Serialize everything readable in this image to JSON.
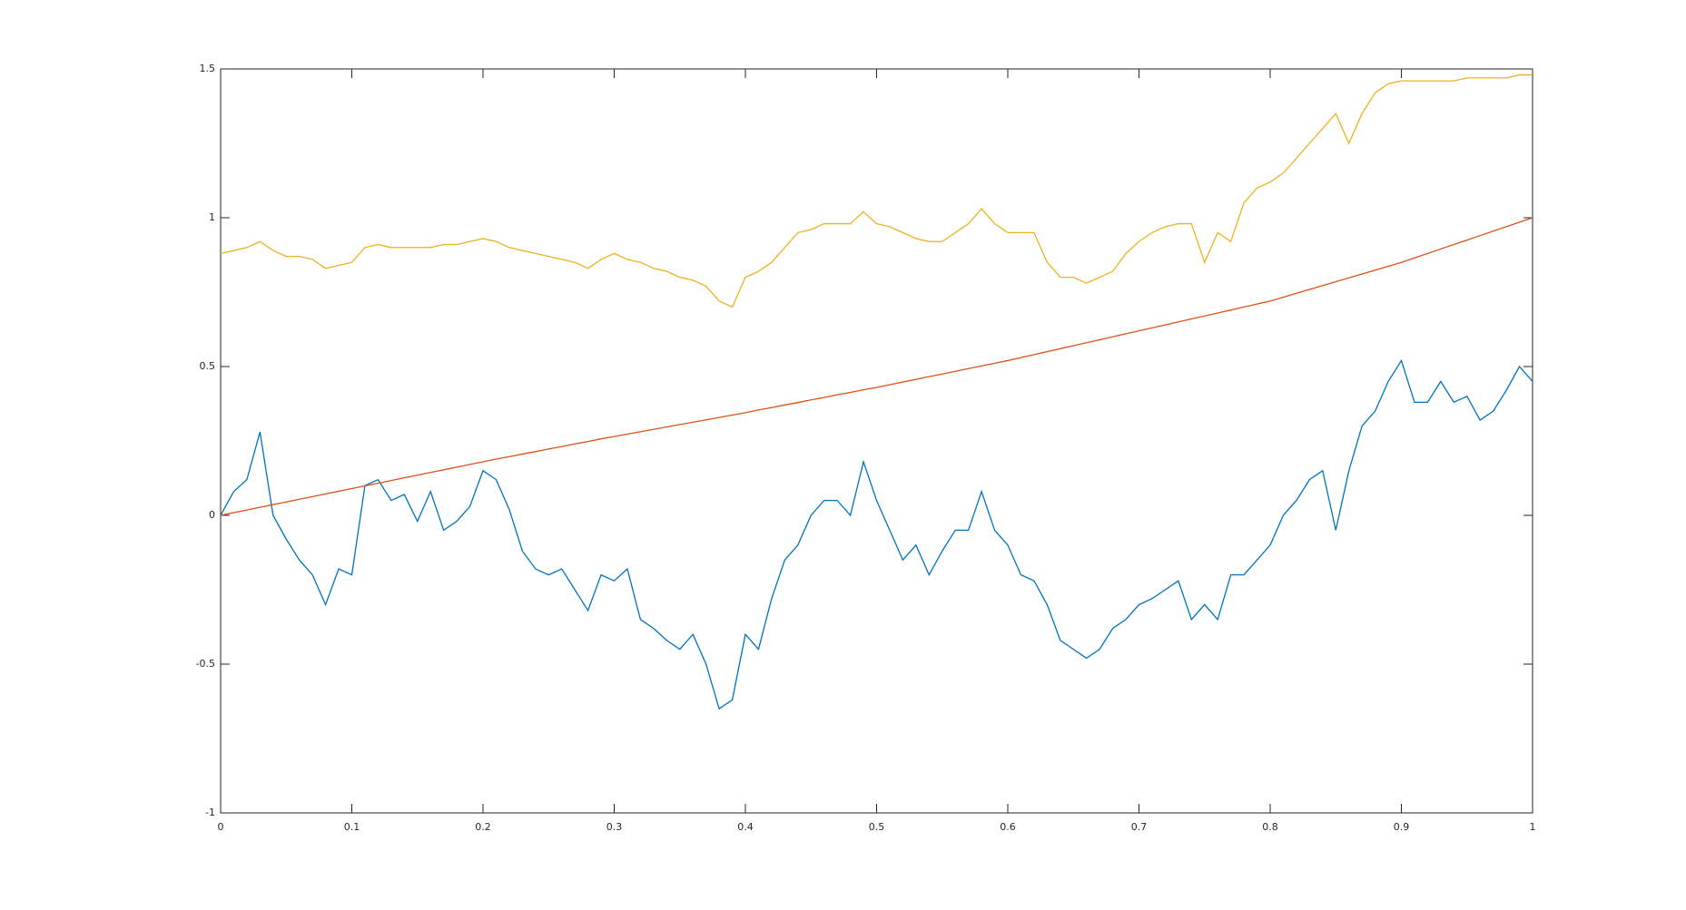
{
  "chart_data": {
    "type": "line",
    "x": [
      0,
      0.01,
      0.02,
      0.03,
      0.04,
      0.05,
      0.06,
      0.07,
      0.08,
      0.09,
      0.1,
      0.11,
      0.12,
      0.13,
      0.14,
      0.15,
      0.16,
      0.17,
      0.18,
      0.19,
      0.2,
      0.21,
      0.22,
      0.23,
      0.24,
      0.25,
      0.26,
      0.27,
      0.28,
      0.29,
      0.3,
      0.31,
      0.32,
      0.33,
      0.34,
      0.35,
      0.36,
      0.37,
      0.38,
      0.39,
      0.4,
      0.41,
      0.42,
      0.43,
      0.44,
      0.45,
      0.46,
      0.47,
      0.48,
      0.49,
      0.5,
      0.51,
      0.52,
      0.53,
      0.54,
      0.55,
      0.56,
      0.57,
      0.58,
      0.59,
      0.6,
      0.61,
      0.62,
      0.63,
      0.64,
      0.65,
      0.66,
      0.67,
      0.68,
      0.69,
      0.7,
      0.71,
      0.72,
      0.73,
      0.74,
      0.75,
      0.76,
      0.77,
      0.78,
      0.79,
      0.8,
      0.81,
      0.82,
      0.83,
      0.84,
      0.85,
      0.86,
      0.87,
      0.88,
      0.89,
      0.9,
      0.91,
      0.92,
      0.93,
      0.94,
      0.95,
      0.96,
      0.97,
      0.98,
      0.99,
      1
    ],
    "series": [
      {
        "color": "#0072bd",
        "values": [
          0,
          0.08,
          0.12,
          0.28,
          0,
          -0.08,
          -0.15,
          -0.2,
          -0.3,
          -0.18,
          -0.2,
          0.1,
          0.12,
          0.05,
          0.07,
          -0.02,
          0.08,
          -0.05,
          -0.02,
          0.03,
          0.15,
          0.12,
          0.02,
          -0.12,
          -0.18,
          -0.2,
          -0.18,
          -0.25,
          -0.32,
          -0.2,
          -0.22,
          -0.18,
          -0.35,
          -0.38,
          -0.42,
          -0.45,
          -0.4,
          -0.5,
          -0.65,
          -0.62,
          -0.4,
          -0.45,
          -0.28,
          -0.15,
          -0.1,
          0,
          0.05,
          0.05,
          0,
          0.18,
          0.05,
          -0.05,
          -0.15,
          -0.1,
          -0.2,
          -0.12,
          -0.05,
          -0.05,
          0.08,
          -0.05,
          -0.1,
          -0.2,
          -0.22,
          -0.3,
          -0.42,
          -0.45,
          -0.48,
          -0.45,
          -0.38,
          -0.35,
          -0.3,
          -0.28,
          -0.25,
          -0.22,
          -0.35,
          -0.3,
          -0.35,
          -0.2,
          -0.2,
          -0.15,
          -0.1,
          0,
          0.05,
          0.12,
          0.15,
          -0.05,
          0.15,
          0.3,
          0.35,
          0.45,
          0.52,
          0.38,
          0.38,
          0.45,
          0.38,
          0.4,
          0.32,
          0.35,
          0.42,
          0.5,
          0.45
        ]
      },
      {
        "color": "#d95319",
        "values": [
          0,
          0.009,
          0.018,
          0.027,
          0.036,
          0.045,
          0.054,
          0.063,
          0.072,
          0.081,
          0.09,
          0.099,
          0.108,
          0.117,
          0.126,
          0.135,
          0.144,
          0.153,
          0.162,
          0.171,
          0.18,
          0.189,
          0.197,
          0.206,
          0.214,
          0.223,
          0.231,
          0.24,
          0.248,
          0.257,
          0.265,
          0.273,
          0.281,
          0.289,
          0.297,
          0.305,
          0.313,
          0.321,
          0.329,
          0.337,
          0.345,
          0.354,
          0.362,
          0.371,
          0.379,
          0.388,
          0.396,
          0.405,
          0.413,
          0.422,
          0.43,
          0.439,
          0.448,
          0.457,
          0.466,
          0.475,
          0.484,
          0.493,
          0.502,
          0.511,
          0.52,
          0.53,
          0.54,
          0.55,
          0.56,
          0.57,
          0.58,
          0.59,
          0.6,
          0.61,
          0.62,
          0.63,
          0.64,
          0.65,
          0.66,
          0.67,
          0.68,
          0.69,
          0.7,
          0.71,
          0.72,
          0.733,
          0.746,
          0.759,
          0.772,
          0.785,
          0.798,
          0.811,
          0.824,
          0.837,
          0.85,
          0.865,
          0.88,
          0.895,
          0.91,
          0.925,
          0.94,
          0.955,
          0.97,
          0.985,
          1
        ]
      },
      {
        "color": "#edb120",
        "values": [
          0.88,
          0.89,
          0.9,
          0.92,
          0.89,
          0.87,
          0.87,
          0.86,
          0.83,
          0.84,
          0.85,
          0.9,
          0.91,
          0.9,
          0.9,
          0.9,
          0.9,
          0.91,
          0.91,
          0.92,
          0.93,
          0.92,
          0.9,
          0.89,
          0.88,
          0.87,
          0.86,
          0.85,
          0.83,
          0.86,
          0.88,
          0.86,
          0.85,
          0.83,
          0.82,
          0.8,
          0.79,
          0.77,
          0.72,
          0.7,
          0.8,
          0.82,
          0.85,
          0.9,
          0.95,
          0.96,
          0.98,
          0.98,
          0.98,
          1.02,
          0.98,
          0.97,
          0.95,
          0.93,
          0.92,
          0.92,
          0.95,
          0.98,
          1.03,
          0.98,
          0.95,
          0.95,
          0.95,
          0.85,
          0.8,
          0.8,
          0.78,
          0.8,
          0.82,
          0.88,
          0.92,
          0.95,
          0.97,
          0.98,
          0.98,
          0.85,
          0.95,
          0.92,
          1.05,
          1.1,
          1.12,
          1.15,
          1.2,
          1.25,
          1.3,
          1.35,
          1.25,
          1.35,
          1.42,
          1.45,
          1.46,
          1.46,
          1.46,
          1.46,
          1.46,
          1.47,
          1.47,
          1.47,
          1.47,
          1.48,
          1.48
        ]
      }
    ],
    "xlim": [
      0,
      1
    ],
    "ylim": [
      -1,
      1.5
    ],
    "xticks": [
      0,
      0.1,
      0.2,
      0.3,
      0.4,
      0.5,
      0.6,
      0.7,
      0.8,
      0.9,
      1
    ],
    "yticks": [
      -1,
      -0.5,
      0,
      0.5,
      1,
      1.5
    ],
    "grid": false
  }
}
